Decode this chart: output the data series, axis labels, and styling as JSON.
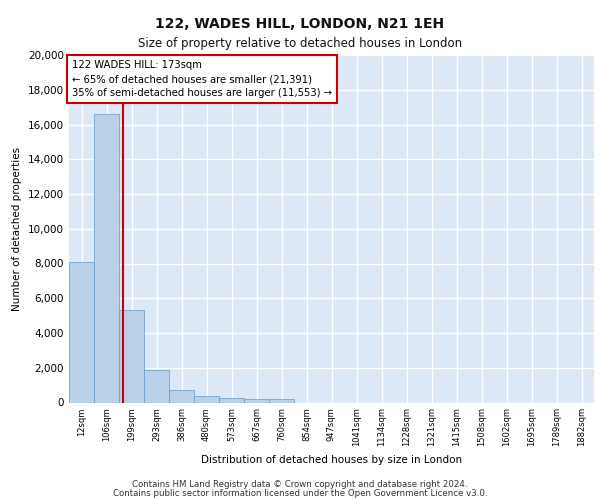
{
  "title": "122, WADES HILL, LONDON, N21 1EH",
  "subtitle": "Size of property relative to detached houses in London",
  "xlabel": "Distribution of detached houses by size in London",
  "ylabel": "Number of detached properties",
  "bin_labels": [
    "12sqm",
    "106sqm",
    "199sqm",
    "293sqm",
    "386sqm",
    "480sqm",
    "573sqm",
    "667sqm",
    "760sqm",
    "854sqm",
    "947sqm",
    "1041sqm",
    "1134sqm",
    "1228sqm",
    "1321sqm",
    "1415sqm",
    "1508sqm",
    "1602sqm",
    "1695sqm",
    "1789sqm",
    "1882sqm"
  ],
  "bar_values": [
    8100,
    16600,
    5300,
    1850,
    700,
    370,
    280,
    220,
    190,
    0,
    0,
    0,
    0,
    0,
    0,
    0,
    0,
    0,
    0,
    0,
    0
  ],
  "bar_color": "#b8d0e8",
  "bar_edge_color": "#6699cc",
  "property_line_x": 1.65,
  "annotation_text": "122 WADES HILL: 173sqm\n← 65% of detached houses are smaller (21,391)\n35% of semi-detached houses are larger (11,553) →",
  "annotation_box_color": "#ffffff",
  "annotation_border_color": "#cc0000",
  "vline_color": "#cc0000",
  "ylim": [
    0,
    20000
  ],
  "yticks": [
    0,
    2000,
    4000,
    6000,
    8000,
    10000,
    12000,
    14000,
    16000,
    18000,
    20000
  ],
  "footer_line1": "Contains HM Land Registry data © Crown copyright and database right 2024.",
  "footer_line2": "Contains public sector information licensed under the Open Government Licence v3.0.",
  "plot_bg_color": "#dce8f5",
  "grid_color": "#ffffff"
}
